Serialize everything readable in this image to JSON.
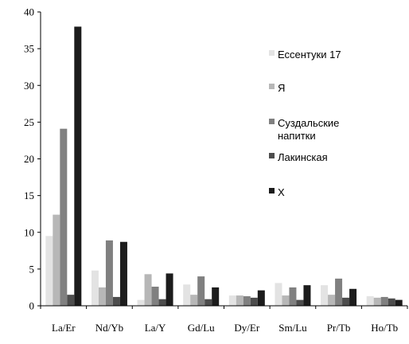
{
  "chart_data": {
    "type": "bar",
    "categories": [
      "La/Er",
      "Nd/Yb",
      "La/Y",
      "Gd/Lu",
      "Dy/Er",
      "Sm/Lu",
      "Pr/Tb",
      "Ho/Tb"
    ],
    "series": [
      {
        "name": "Ессентуки 17",
        "color": "#e3e3e3",
        "values": [
          9.5,
          4.8,
          0.8,
          2.9,
          1.4,
          3.1,
          2.8,
          1.3
        ]
      },
      {
        "name": "Я",
        "color": "#b7b7b7",
        "values": [
          12.4,
          2.5,
          4.3,
          1.5,
          1.4,
          1.4,
          1.5,
          1.1
        ]
      },
      {
        "name": "Суздальские напитки",
        "color": "#808080",
        "values": [
          24.1,
          8.9,
          2.6,
          4.0,
          1.3,
          2.5,
          3.7,
          1.2
        ]
      },
      {
        "name": "Лакинская",
        "color": "#4d4d4d",
        "values": [
          1.5,
          1.2,
          0.9,
          0.9,
          1.1,
          0.8,
          1.1,
          1.0
        ]
      },
      {
        "name": "Х",
        "color": "#1c1c1c",
        "values": [
          38.0,
          8.7,
          4.4,
          2.5,
          2.1,
          2.8,
          2.3,
          0.8
        ]
      }
    ],
    "yticks": [
      "0",
      "5",
      "10",
      "15",
      "20",
      "25",
      "30",
      "35",
      "40"
    ],
    "ylim": [
      0,
      40
    ],
    "title": "",
    "xlabel": "",
    "ylabel": "",
    "grid": false,
    "legend_position": "right"
  }
}
